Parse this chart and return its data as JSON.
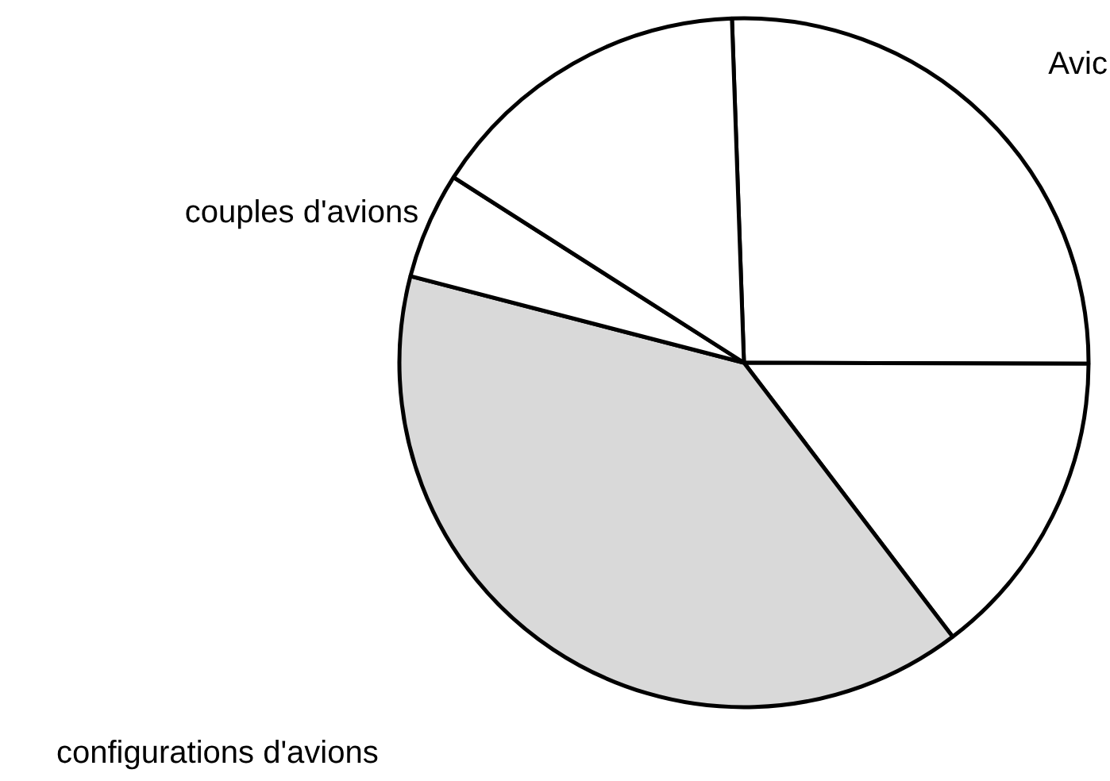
{
  "chart_data": {
    "type": "pie",
    "categories": [
      "Avic",
      null,
      "configurations d'avions",
      "couples d'avions",
      null
    ],
    "values": [
      25.6,
      14.6,
      39.4,
      5.0,
      15.4
    ],
    "colors": [
      "#ffffff",
      "#ffffff",
      "#d9d9d9",
      "#ffffff",
      "#ffffff"
    ]
  }
}
